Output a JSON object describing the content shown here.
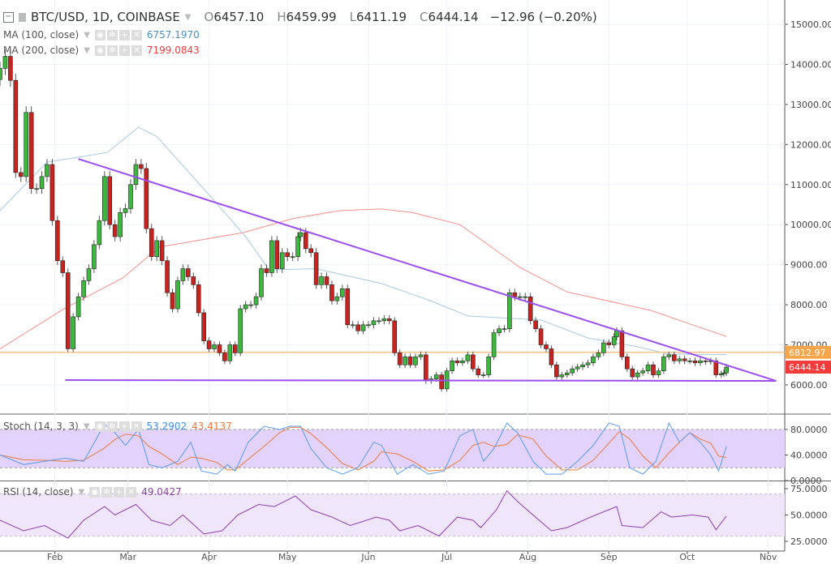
{
  "header": {
    "symbol": "BTC/USD, 1D, COINBASE",
    "open_label": "O",
    "open": "6457.10",
    "high_label": "H",
    "high": "6459.99",
    "low_label": "L",
    "low": "6411.19",
    "close_label": "C",
    "close": "6444.14",
    "change": "−12.96 (−0.20%)"
  },
  "indicators": {
    "ma100": {
      "label": "MA (100, close)",
      "value": "6757.1970",
      "color": "#4a8fc8"
    },
    "ma200": {
      "label": "MA (200, close)",
      "value": "7199.0843",
      "color": "#f23b3b"
    },
    "stoch": {
      "label": "Stoch (14, 3, 3)",
      "k_value": "53.2902",
      "d_value": "43.4137",
      "k_color": "#3d8bf0",
      "d_color": "#f07a3d"
    },
    "rsi": {
      "label": "RSI (14, close)",
      "value": "49.0427",
      "color": "#8e3fb0"
    }
  },
  "chart_data": [
    {
      "type": "candlestick",
      "title": "BTC/USD, 1D, COINBASE",
      "ylim": [
        5500,
        15500
      ],
      "yticks": [
        "15000.00",
        "14000.00",
        "13000.00",
        "12000.00",
        "11000.00",
        "10000.00",
        "9000.00",
        "8000.00",
        "7000.00",
        "6000.00"
      ],
      "xticks": [
        "Feb",
        "Mar",
        "Apr",
        "May",
        "Jun",
        "Jul",
        "Aug",
        "Sep",
        "Oct",
        "Nov"
      ],
      "grid": true,
      "close": [
        [
          "2018-01-11",
          13900
        ],
        [
          "2018-01-13",
          14200
        ],
        [
          "2018-01-15",
          13600
        ],
        [
          "2018-01-17",
          11300
        ],
        [
          "2018-01-19",
          11200
        ],
        [
          "2018-01-21",
          12800
        ],
        [
          "2018-01-23",
          10900
        ],
        [
          "2018-01-25",
          10900
        ],
        [
          "2018-01-27",
          11200
        ],
        [
          "2018-01-29",
          11500
        ],
        [
          "2018-01-31",
          10100
        ],
        [
          "2018-02-02",
          9100
        ],
        [
          "2018-02-04",
          8800
        ],
        [
          "2018-02-06",
          6900
        ],
        [
          "2018-02-08",
          7700
        ],
        [
          "2018-02-10",
          8200
        ],
        [
          "2018-02-12",
          8600
        ],
        [
          "2018-02-14",
          8900
        ],
        [
          "2018-02-16",
          9500
        ],
        [
          "2018-02-18",
          10100
        ],
        [
          "2018-02-20",
          11200
        ],
        [
          "2018-02-22",
          10000
        ],
        [
          "2018-02-24",
          9700
        ],
        [
          "2018-02-26",
          10300
        ],
        [
          "2018-02-28",
          10400
        ],
        [
          "2018-03-02",
          11000
        ],
        [
          "2018-03-04",
          11500
        ],
        [
          "2018-03-06",
          11400
        ],
        [
          "2018-03-08",
          9900
        ],
        [
          "2018-03-10",
          9200
        ],
        [
          "2018-03-12",
          9600
        ],
        [
          "2018-03-14",
          9100
        ],
        [
          "2018-03-16",
          8300
        ],
        [
          "2018-03-18",
          7900
        ],
        [
          "2018-03-20",
          8600
        ],
        [
          "2018-03-22",
          8900
        ],
        [
          "2018-03-24",
          8700
        ],
        [
          "2018-03-26",
          8500
        ],
        [
          "2018-03-28",
          7800
        ],
        [
          "2018-03-30",
          7100
        ],
        [
          "2018-04-01",
          6900
        ],
        [
          "2018-04-03",
          7000
        ],
        [
          "2018-04-05",
          6800
        ],
        [
          "2018-04-07",
          6600
        ],
        [
          "2018-04-09",
          7000
        ],
        [
          "2018-04-11",
          6800
        ],
        [
          "2018-04-13",
          7900
        ],
        [
          "2018-04-15",
          8000
        ],
        [
          "2018-04-17",
          8000
        ],
        [
          "2018-04-19",
          8200
        ],
        [
          "2018-04-21",
          8900
        ],
        [
          "2018-04-23",
          8800
        ],
        [
          "2018-04-25",
          9600
        ],
        [
          "2018-04-27",
          8900
        ],
        [
          "2018-04-29",
          9300
        ],
        [
          "2018-05-01",
          9200
        ],
        [
          "2018-05-03",
          9200
        ],
        [
          "2018-05-05",
          9700
        ],
        [
          "2018-05-06",
          9800
        ],
        [
          "2018-05-08",
          9400
        ],
        [
          "2018-05-10",
          9300
        ],
        [
          "2018-05-12",
          8500
        ],
        [
          "2018-05-14",
          8700
        ],
        [
          "2018-05-16",
          8500
        ],
        [
          "2018-05-18",
          8100
        ],
        [
          "2018-05-20",
          8200
        ],
        [
          "2018-05-22",
          8400
        ],
        [
          "2018-05-24",
          7500
        ],
        [
          "2018-05-26",
          7500
        ],
        [
          "2018-05-28",
          7350
        ],
        [
          "2018-05-30",
          7500
        ],
        [
          "2018-06-01",
          7500
        ],
        [
          "2018-06-03",
          7600
        ],
        [
          "2018-06-05",
          7600
        ],
        [
          "2018-06-07",
          7650
        ],
        [
          "2018-06-09",
          7600
        ],
        [
          "2018-06-11",
          6800
        ],
        [
          "2018-06-13",
          6500
        ],
        [
          "2018-06-15",
          6700
        ],
        [
          "2018-06-17",
          6500
        ],
        [
          "2018-06-19",
          6700
        ],
        [
          "2018-06-21",
          6750
        ],
        [
          "2018-06-23",
          6100
        ],
        [
          "2018-06-25",
          6150
        ],
        [
          "2018-06-27",
          6250
        ],
        [
          "2018-06-29",
          5900
        ],
        [
          "2018-07-01",
          6350
        ],
        [
          "2018-07-03",
          6600
        ],
        [
          "2018-07-05",
          6550
        ],
        [
          "2018-07-07",
          6600
        ],
        [
          "2018-07-09",
          6750
        ],
        [
          "2018-07-11",
          6400
        ],
        [
          "2018-07-13",
          6250
        ],
        [
          "2018-07-15",
          6250
        ],
        [
          "2018-07-17",
          6700
        ],
        [
          "2018-07-19",
          7300
        ],
        [
          "2018-07-21",
          7400
        ],
        [
          "2018-07-23",
          7400
        ],
        [
          "2018-07-25",
          8300
        ],
        [
          "2018-07-27",
          8200
        ],
        [
          "2018-07-29",
          8200
        ],
        [
          "2018-07-31",
          8200
        ],
        [
          "2018-08-02",
          7600
        ],
        [
          "2018-08-04",
          7400
        ],
        [
          "2018-08-06",
          7000
        ],
        [
          "2018-08-08",
          6900
        ],
        [
          "2018-08-10",
          6500
        ],
        [
          "2018-08-12",
          6200
        ],
        [
          "2018-08-14",
          6250
        ],
        [
          "2018-08-16",
          6300
        ],
        [
          "2018-08-18",
          6400
        ],
        [
          "2018-08-20",
          6450
        ],
        [
          "2018-08-22",
          6500
        ],
        [
          "2018-08-24",
          6550
        ],
        [
          "2018-08-26",
          6700
        ],
        [
          "2018-08-28",
          6800
        ],
        [
          "2018-08-30",
          7050
        ],
        [
          "2018-09-01",
          7000
        ],
        [
          "2018-09-03",
          7200
        ],
        [
          "2018-09-04",
          7350
        ],
        [
          "2018-09-06",
          6700
        ],
        [
          "2018-09-08",
          6400
        ],
        [
          "2018-09-10",
          6200
        ],
        [
          "2018-09-12",
          6300
        ],
        [
          "2018-09-14",
          6350
        ],
        [
          "2018-09-16",
          6500
        ],
        [
          "2018-09-18",
          6250
        ],
        [
          "2018-09-20",
          6350
        ],
        [
          "2018-09-22",
          6700
        ],
        [
          "2018-09-24",
          6750
        ],
        [
          "2018-09-26",
          6600
        ],
        [
          "2018-09-28",
          6650
        ],
        [
          "2018-09-30",
          6600
        ],
        [
          "2018-10-02",
          6600
        ],
        [
          "2018-10-04",
          6550
        ],
        [
          "2018-10-06",
          6600
        ],
        [
          "2018-10-08",
          6580
        ],
        [
          "2018-10-10",
          6600
        ],
        [
          "2018-10-12",
          6250
        ],
        [
          "2018-10-14",
          6280
        ],
        [
          "2018-10-15",
          6300
        ],
        [
          "2018-10-16",
          6444.14
        ]
      ],
      "ma100": [
        [
          "2018-01-11",
          10350
        ],
        [
          "2018-01-29",
          11560
        ],
        [
          "2018-02-21",
          11800
        ],
        [
          "2018-03-05",
          12430
        ],
        [
          "2018-03-12",
          12200
        ],
        [
          "2018-04-03",
          10600
        ],
        [
          "2018-04-15",
          9700
        ],
        [
          "2018-04-24",
          8870
        ],
        [
          "2018-05-12",
          8900
        ],
        [
          "2018-06-06",
          8530
        ],
        [
          "2018-06-24",
          8120
        ],
        [
          "2018-07-09",
          7720
        ],
        [
          "2018-08-06",
          7620
        ],
        [
          "2018-08-24",
          7170
        ],
        [
          "2018-09-12",
          6950
        ],
        [
          "2018-09-24",
          6770
        ],
        [
          "2018-10-16",
          6757
        ]
      ],
      "ma200": [
        [
          "2018-01-11",
          6900
        ],
        [
          "2018-02-05",
          7920
        ],
        [
          "2018-02-27",
          8670
        ],
        [
          "2018-03-13",
          9440
        ],
        [
          "2018-04-14",
          9800
        ],
        [
          "2018-05-03",
          10150
        ],
        [
          "2018-05-21",
          10350
        ],
        [
          "2018-06-06",
          10390
        ],
        [
          "2018-06-18",
          10300
        ],
        [
          "2018-07-06",
          10000
        ],
        [
          "2018-07-29",
          8930
        ],
        [
          "2018-08-16",
          8320
        ],
        [
          "2018-09-17",
          7860
        ],
        [
          "2018-10-02",
          7520
        ],
        [
          "2018-10-16",
          7210
        ]
      ],
      "horizontal_line": {
        "value": 6812.97,
        "label": "6812.97",
        "color": "#f7a54a"
      },
      "last_price": {
        "value": 6444.14,
        "label": "6444.14",
        "color": "#f23b3b"
      },
      "trendlines": [
        {
          "from": [
            "2018-02-10",
            11640
          ],
          "to": [
            "2018-11-04",
            6100
          ],
          "color": "#9c4ff0"
        },
        {
          "from": [
            "2018-02-05",
            6120
          ],
          "to": [
            "2018-11-04",
            6100
          ],
          "color": "#9c4ff0"
        }
      ]
    },
    {
      "type": "line",
      "title": "Stoch (14, 3, 3)",
      "ylim": [
        0,
        100
      ],
      "yticks": [
        "80.0000",
        "40.0000",
        "0.0000"
      ],
      "band": [
        20,
        80
      ],
      "k": [
        [
          "2018-01-11",
          40
        ],
        [
          "2018-01-20",
          25
        ],
        [
          "2018-01-28",
          30
        ],
        [
          "2018-02-05",
          35
        ],
        [
          "2018-02-12",
          30
        ],
        [
          "2018-02-20",
          88
        ],
        [
          "2018-02-24",
          75
        ],
        [
          "2018-02-28",
          55
        ],
        [
          "2018-03-05",
          80
        ],
        [
          "2018-03-09",
          25
        ],
        [
          "2018-03-14",
          20
        ],
        [
          "2018-03-20",
          30
        ],
        [
          "2018-03-25",
          60
        ],
        [
          "2018-03-29",
          15
        ],
        [
          "2018-04-04",
          10
        ],
        [
          "2018-04-08",
          25
        ],
        [
          "2018-04-11",
          15
        ],
        [
          "2018-04-16",
          60
        ],
        [
          "2018-04-22",
          85
        ],
        [
          "2018-04-28",
          80
        ],
        [
          "2018-05-02",
          85
        ],
        [
          "2018-05-06",
          85
        ],
        [
          "2018-05-10",
          50
        ],
        [
          "2018-05-16",
          20
        ],
        [
          "2018-05-22",
          10
        ],
        [
          "2018-05-28",
          20
        ],
        [
          "2018-06-03",
          60
        ],
        [
          "2018-06-06",
          55
        ],
        [
          "2018-06-12",
          10
        ],
        [
          "2018-06-18",
          25
        ],
        [
          "2018-06-24",
          10
        ],
        [
          "2018-06-30",
          15
        ],
        [
          "2018-07-06",
          70
        ],
        [
          "2018-07-11",
          80
        ],
        [
          "2018-07-15",
          30
        ],
        [
          "2018-07-19",
          50
        ],
        [
          "2018-07-24",
          90
        ],
        [
          "2018-07-28",
          75
        ],
        [
          "2018-08-03",
          30
        ],
        [
          "2018-08-08",
          10
        ],
        [
          "2018-08-14",
          10
        ],
        [
          "2018-08-20",
          30
        ],
        [
          "2018-08-26",
          55
        ],
        [
          "2018-09-01",
          90
        ],
        [
          "2018-09-05",
          85
        ],
        [
          "2018-09-09",
          20
        ],
        [
          "2018-09-14",
          10
        ],
        [
          "2018-09-19",
          30
        ],
        [
          "2018-09-24",
          90
        ],
        [
          "2018-09-28",
          60
        ],
        [
          "2018-10-02",
          75
        ],
        [
          "2018-10-06",
          60
        ],
        [
          "2018-10-10",
          40
        ],
        [
          "2018-10-13",
          15
        ],
        [
          "2018-10-16",
          53.29
        ]
      ]
    },
    {
      "type": "line",
      "title": "RSI (14, close)",
      "ylim": [
        20,
        80
      ],
      "yticks": [
        "75.0000",
        "50.0000",
        "25.0000"
      ],
      "band": [
        30,
        70
      ],
      "rsi": [
        [
          "2018-01-11",
          45
        ],
        [
          "2018-01-20",
          35
        ],
        [
          "2018-01-28",
          40
        ],
        [
          "2018-02-06",
          28
        ],
        [
          "2018-02-12",
          45
        ],
        [
          "2018-02-20",
          58
        ],
        [
          "2018-02-24",
          50
        ],
        [
          "2018-03-04",
          60
        ],
        [
          "2018-03-10",
          45
        ],
        [
          "2018-03-17",
          40
        ],
        [
          "2018-03-22",
          50
        ],
        [
          "2018-03-30",
          32
        ],
        [
          "2018-04-06",
          35
        ],
        [
          "2018-04-12",
          50
        ],
        [
          "2018-04-20",
          60
        ],
        [
          "2018-04-26",
          58
        ],
        [
          "2018-05-04",
          68
        ],
        [
          "2018-05-10",
          55
        ],
        [
          "2018-05-18",
          48
        ],
        [
          "2018-05-25",
          40
        ],
        [
          "2018-06-04",
          48
        ],
        [
          "2018-06-09",
          45
        ],
        [
          "2018-06-13",
          35
        ],
        [
          "2018-06-20",
          40
        ],
        [
          "2018-06-28",
          30
        ],
        [
          "2018-07-05",
          48
        ],
        [
          "2018-07-11",
          45
        ],
        [
          "2018-07-14",
          38
        ],
        [
          "2018-07-20",
          55
        ],
        [
          "2018-07-24",
          73
        ],
        [
          "2018-07-28",
          63
        ],
        [
          "2018-08-03",
          50
        ],
        [
          "2018-08-10",
          35
        ],
        [
          "2018-08-16",
          38
        ],
        [
          "2018-08-25",
          48
        ],
        [
          "2018-09-04",
          58
        ],
        [
          "2018-09-06",
          40
        ],
        [
          "2018-09-14",
          38
        ],
        [
          "2018-09-21",
          53
        ],
        [
          "2018-09-25",
          48
        ],
        [
          "2018-10-03",
          50
        ],
        [
          "2018-10-09",
          48
        ],
        [
          "2018-10-12",
          36
        ],
        [
          "2018-10-16",
          49.04
        ]
      ]
    }
  ]
}
